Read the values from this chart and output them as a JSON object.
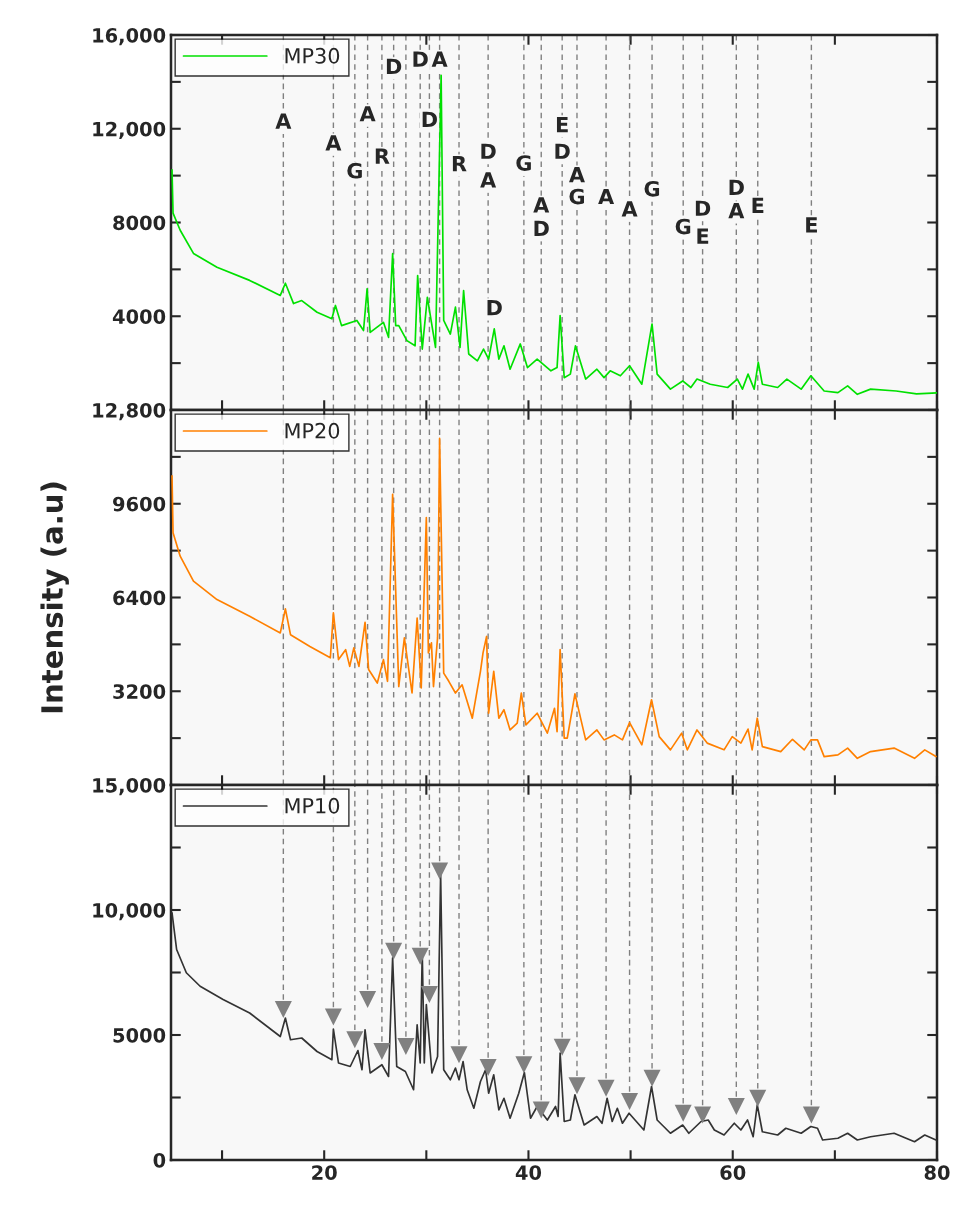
{
  "chart_data": [
    {
      "type": "line",
      "series": [
        {
          "name": "MP30",
          "color": "#00e000",
          "x": [
            5.1,
            5.2,
            5.9,
            7.2,
            9.5,
            12.7,
            15.7,
            16.2,
            17.0,
            17.8,
            19.3,
            20.75,
            21.1,
            21.7,
            23.2,
            23.85,
            24.2,
            24.5,
            25.8,
            26.3,
            26.7,
            27.0,
            27.3,
            28.1,
            28.9,
            29.15,
            29.6,
            30.1,
            30.9,
            31.45,
            31.7,
            32.35,
            32.85,
            33.3,
            33.65,
            34.15,
            35.0,
            35.6,
            36.1,
            36.65,
            37.1,
            37.6,
            38.2,
            39.2,
            39.9,
            40.85,
            42.2,
            42.8,
            43.1,
            43.5,
            44.1,
            44.6,
            45.6,
            46.7,
            47.4,
            48.0,
            49.0,
            49.9,
            51.1,
            52.1,
            52.6,
            53.9,
            55.1,
            55.9,
            56.5,
            57.8,
            59.5,
            60.45,
            60.95,
            61.5,
            62.1,
            62.5,
            62.9,
            64.4,
            65.3,
            66.7,
            67.65,
            68.95,
            70.3,
            71.25,
            72.2,
            73.5,
            76,
            78,
            80
          ],
          "values": [
            10250,
            8400,
            7670,
            6680,
            6090,
            5530,
            4890,
            5410,
            4540,
            4670,
            4170,
            3890,
            4460,
            3600,
            3820,
            3390,
            5170,
            3310,
            3740,
            3100,
            6670,
            3600,
            3600,
            2960,
            2740,
            5740,
            2600,
            4810,
            2670,
            14280,
            3820,
            3240,
            4390,
            2670,
            5100,
            2390,
            2100,
            2600,
            2170,
            3460,
            2170,
            2740,
            1740,
            2820,
            1810,
            2170,
            1670,
            1810,
            4030,
            1380,
            1530,
            2740,
            1320,
            1740,
            1380,
            1670,
            1460,
            1890,
            1100,
            3670,
            1530,
            890,
            1240,
            960,
            1320,
            1100,
            960,
            1320,
            890,
            1530,
            890,
            2030,
            1100,
            960,
            1320,
            890,
            1460,
            810,
            740,
            1030,
            670,
            890,
            810,
            690,
            730
          ]
        }
      ],
      "xlim": [
        5,
        80
      ],
      "xticks": [
        {
          "value": 10,
          "label": null
        },
        {
          "value": 20,
          "label": null
        },
        {
          "value": 30,
          "label": null
        },
        {
          "value": 40,
          "label": null
        },
        {
          "value": 50,
          "label": null
        },
        {
          "value": 60,
          "label": null
        },
        {
          "value": 70,
          "label": null
        },
        {
          "value": 80,
          "label": null
        }
      ],
      "ylim": [
        0,
        16000
      ],
      "yticks": [
        {
          "value": 0,
          "label": null
        },
        {
          "value": 2000,
          "label": null
        },
        4000,
        {
          "value": 6000,
          "label": null
        },
        8000,
        {
          "value": 10000,
          "label": null
        },
        {
          "value": 12000,
          "label": "12,000"
        },
        {
          "value": 14000,
          "label": null
        },
        {
          "value": 16000,
          "label": "16,000"
        }
      ],
      "tick_labels": "y",
      "legend": "top left",
      "line_style": "solid",
      "ref_lines": [
        {
          "axis": "x",
          "value": 16.0,
          "color": "#808080",
          "line_style": "dashed"
        },
        {
          "axis": "x",
          "value": 20.9,
          "color": "#808080",
          "line_style": "dashed"
        },
        {
          "axis": "x",
          "value": 23.0,
          "color": "#808080",
          "line_style": "dashed"
        },
        {
          "axis": "x",
          "value": 24.25,
          "color": "#808080",
          "line_style": "dashed"
        },
        {
          "axis": "x",
          "value": 25.65,
          "color": "#808080",
          "line_style": "dashed"
        },
        {
          "axis": "x",
          "value": 26.8,
          "color": "#808080",
          "line_style": "dashed"
        },
        {
          "axis": "x",
          "value": 28.0,
          "color": "#808080",
          "line_style": "dashed"
        },
        {
          "axis": "x",
          "value": 29.4,
          "color": "#808080",
          "line_style": "dashed"
        },
        {
          "axis": "x",
          "value": 30.3,
          "color": "#808080",
          "line_style": "dashed"
        },
        {
          "axis": "x",
          "value": 31.3,
          "color": "#808080",
          "line_style": "dashed"
        },
        {
          "axis": "x",
          "value": 33.2,
          "color": "#808080",
          "line_style": "dashed"
        },
        {
          "axis": "x",
          "value": 36.05,
          "color": "#808080",
          "line_style": "dashed"
        },
        {
          "axis": "x",
          "value": 39.55,
          "color": "#808080",
          "line_style": "dashed"
        },
        {
          "axis": "x",
          "value": 41.25,
          "color": "#808080",
          "line_style": "dashed"
        },
        {
          "axis": "x",
          "value": 43.3,
          "color": "#808080",
          "line_style": "dashed"
        },
        {
          "axis": "x",
          "value": 44.75,
          "color": "#808080",
          "line_style": "dashed"
        },
        {
          "axis": "x",
          "value": 47.6,
          "color": "#808080",
          "line_style": "dashed"
        },
        {
          "axis": "x",
          "value": 49.9,
          "color": "#808080",
          "line_style": "dashed"
        },
        {
          "axis": "x",
          "value": 52.1,
          "color": "#808080",
          "line_style": "dashed"
        },
        {
          "axis": "x",
          "value": 55.15,
          "color": "#808080",
          "line_style": "dashed"
        },
        {
          "axis": "x",
          "value": 57.05,
          "color": "#808080",
          "line_style": "dashed"
        },
        {
          "axis": "x",
          "value": 60.35,
          "color": "#808080",
          "line_style": "dashed"
        },
        {
          "axis": "x",
          "value": 62.45,
          "color": "#808080",
          "line_style": "dashed"
        },
        {
          "axis": "x",
          "value": 67.7,
          "color": "#808080",
          "line_style": "dashed"
        }
      ],
      "annotations": [
        {
          "text": "A",
          "x": 16.0,
          "y": 12250
        },
        {
          "text": "A",
          "x": 20.9,
          "y": 11320
        },
        {
          "text": "G",
          "x": 23.0,
          "y": 10130
        },
        {
          "text": "A",
          "x": 24.25,
          "y": 12560
        },
        {
          "text": "R",
          "x": 25.65,
          "y": 10750
        },
        {
          "text": "D",
          "x": 26.8,
          "y": 14580
        },
        {
          "text": "D",
          "x": 29.4,
          "y": 14890
        },
        {
          "text": "A",
          "x": 31.3,
          "y": 14890
        },
        {
          "text": "D",
          "x": 30.3,
          "y": 12320
        },
        {
          "text": "R",
          "x": 33.2,
          "y": 10430
        },
        {
          "text": "D",
          "x": 36.05,
          "y": 10960
        },
        {
          "text": "A",
          "x": 36.05,
          "y": 9740
        },
        {
          "text": "D",
          "x": 36.65,
          "y": 3460
        },
        {
          "text": "G",
          "x": 39.55,
          "y": 10460
        },
        {
          "text": "A",
          "x": 41.25,
          "y": 8670
        },
        {
          "text": "D",
          "x": 41.25,
          "y": 7670
        },
        {
          "text": "E",
          "x": 43.3,
          "y": 12100
        },
        {
          "text": "D",
          "x": 43.3,
          "y": 10960
        },
        {
          "text": "A",
          "x": 44.75,
          "y": 9960
        },
        {
          "text": "G",
          "x": 44.75,
          "y": 9030
        },
        {
          "text": "A",
          "x": 47.6,
          "y": 9030
        },
        {
          "text": "A",
          "x": 49.9,
          "y": 8500
        },
        {
          "text": "G",
          "x": 52.1,
          "y": 9360
        },
        {
          "text": "G",
          "x": 55.15,
          "y": 7750
        },
        {
          "text": "D",
          "x": 57.05,
          "y": 8530
        },
        {
          "text": "E",
          "x": 57.05,
          "y": 7340
        },
        {
          "text": "D",
          "x": 60.35,
          "y": 9420
        },
        {
          "text": "A",
          "x": 60.35,
          "y": 8430
        },
        {
          "text": "E",
          "x": 62.45,
          "y": 8650
        },
        {
          "text": "E",
          "x": 67.7,
          "y": 7820
        }
      ]
    },
    {
      "type": "line",
      "ylabel": "Intensity (a.u)",
      "series": [
        {
          "name": "MP20",
          "color": "#ff8000",
          "x": [
            5.1,
            5.2,
            5.9,
            7.2,
            9.5,
            12.7,
            15.7,
            16.2,
            16.7,
            18.6,
            20.6,
            20.9,
            21.4,
            22.1,
            22.5,
            22.9,
            23.4,
            24.0,
            24.35,
            25.2,
            25.8,
            26.2,
            26.7,
            27.3,
            27.85,
            28.6,
            29.1,
            29.5,
            30.0,
            30.2,
            30.5,
            30.7,
            31.1,
            31.3,
            31.7,
            32.2,
            32.85,
            33.5,
            34.5,
            35.3,
            35.55,
            35.9,
            36.1,
            36.6,
            37.1,
            37.6,
            38.2,
            38.9,
            39.3,
            39.75,
            40.85,
            41.85,
            42.55,
            42.8,
            43.1,
            43.5,
            43.8,
            44.55,
            45.6,
            46.7,
            47.4,
            48.4,
            49.2,
            49.9,
            51.1,
            52.05,
            52.8,
            53.9,
            55.0,
            55.55,
            56.5,
            57.5,
            59.15,
            59.95,
            60.8,
            61.5,
            61.9,
            62.4,
            62.9,
            64.7,
            65.85,
            67.0,
            67.65,
            68.3,
            68.95,
            70.3,
            71.25,
            72.2,
            73.5,
            75.8,
            77.8,
            78.8,
            79.9
          ],
          "values": [
            10550,
            8610,
            7810,
            6960,
            6330,
            5760,
            5190,
            6010,
            5130,
            4730,
            4340,
            5880,
            4280,
            4620,
            4050,
            4680,
            4050,
            5550,
            3940,
            3480,
            4280,
            3540,
            9920,
            3360,
            5020,
            3140,
            5700,
            3310,
            9130,
            4510,
            4850,
            3360,
            5020,
            11830,
            3820,
            3540,
            3140,
            3420,
            2280,
            3880,
            4510,
            5070,
            2450,
            3880,
            2280,
            2570,
            1880,
            2110,
            3140,
            2050,
            2450,
            1770,
            2620,
            1820,
            4620,
            1600,
            1600,
            3110,
            1540,
            1880,
            1540,
            1710,
            1540,
            2130,
            1370,
            2910,
            1650,
            1200,
            1770,
            1200,
            1880,
            1430,
            1200,
            1650,
            1430,
            1910,
            1200,
            2280,
            1310,
            1140,
            1560,
            1200,
            1540,
            1540,
            970,
            1030,
            1260,
            910,
            1140,
            1260,
            910,
            1200,
            970
          ]
        }
      ],
      "xlim": [
        5,
        80
      ],
      "xticks": [
        {
          "value": 10,
          "label": null
        },
        {
          "value": 20,
          "label": null
        },
        {
          "value": 30,
          "label": null
        },
        {
          "value": 40,
          "label": null
        },
        {
          "value": 50,
          "label": null
        },
        {
          "value": 60,
          "label": null
        },
        {
          "value": 70,
          "label": null
        },
        {
          "value": 80,
          "label": null
        }
      ],
      "ylim": [
        0,
        12800
      ],
      "yticks": [
        {
          "value": 0,
          "label": null
        },
        {
          "value": 1600,
          "label": null
        },
        3200,
        {
          "value": 4800,
          "label": null
        },
        6400,
        {
          "value": 8000,
          "label": null
        },
        9600,
        {
          "value": 11200,
          "label": null
        },
        {
          "value": 12800,
          "label": "12,800"
        }
      ],
      "tick_labels": "y",
      "legend": "top left",
      "line_style": "solid",
      "ref_lines": [
        {
          "axis": "x",
          "value": 16.0,
          "color": "#808080",
          "line_style": "dashed"
        },
        {
          "axis": "x",
          "value": 20.9,
          "color": "#808080",
          "line_style": "dashed"
        },
        {
          "axis": "x",
          "value": 23.0,
          "color": "#808080",
          "line_style": "dashed"
        },
        {
          "axis": "x",
          "value": 24.25,
          "color": "#808080",
          "line_style": "dashed"
        },
        {
          "axis": "x",
          "value": 25.65,
          "color": "#808080",
          "line_style": "dashed"
        },
        {
          "axis": "x",
          "value": 26.8,
          "color": "#808080",
          "line_style": "dashed"
        },
        {
          "axis": "x",
          "value": 28.0,
          "color": "#808080",
          "line_style": "dashed"
        },
        {
          "axis": "x",
          "value": 29.4,
          "color": "#808080",
          "line_style": "dashed"
        },
        {
          "axis": "x",
          "value": 30.3,
          "color": "#808080",
          "line_style": "dashed"
        },
        {
          "axis": "x",
          "value": 31.3,
          "color": "#808080",
          "line_style": "dashed"
        },
        {
          "axis": "x",
          "value": 33.2,
          "color": "#808080",
          "line_style": "dashed"
        },
        {
          "axis": "x",
          "value": 36.05,
          "color": "#808080",
          "line_style": "dashed"
        },
        {
          "axis": "x",
          "value": 39.55,
          "color": "#808080",
          "line_style": "dashed"
        },
        {
          "axis": "x",
          "value": 41.25,
          "color": "#808080",
          "line_style": "dashed"
        },
        {
          "axis": "x",
          "value": 43.3,
          "color": "#808080",
          "line_style": "dashed"
        },
        {
          "axis": "x",
          "value": 44.75,
          "color": "#808080",
          "line_style": "dashed"
        },
        {
          "axis": "x",
          "value": 47.6,
          "color": "#808080",
          "line_style": "dashed"
        },
        {
          "axis": "x",
          "value": 49.9,
          "color": "#808080",
          "line_style": "dashed"
        },
        {
          "axis": "x",
          "value": 52.1,
          "color": "#808080",
          "line_style": "dashed"
        },
        {
          "axis": "x",
          "value": 55.15,
          "color": "#808080",
          "line_style": "dashed"
        },
        {
          "axis": "x",
          "value": 57.05,
          "color": "#808080",
          "line_style": "dashed"
        },
        {
          "axis": "x",
          "value": 60.35,
          "color": "#808080",
          "line_style": "dashed"
        },
        {
          "axis": "x",
          "value": 62.45,
          "color": "#808080",
          "line_style": "dashed"
        },
        {
          "axis": "x",
          "value": 67.7,
          "color": "#808080",
          "line_style": "dashed"
        }
      ]
    },
    {
      "type": "line",
      "series": [
        {
          "name": "MP10",
          "color": "#333333",
          "x": [
            5.1,
            5.55,
            6.5,
            7.85,
            10.1,
            12.7,
            15.7,
            16.2,
            16.7,
            17.8,
            19.3,
            20.75,
            20.9,
            21.4,
            22.55,
            23.3,
            23.7,
            24.0,
            24.5,
            25.65,
            26.3,
            26.7,
            27.1,
            27.95,
            28.75,
            29.1,
            29.4,
            29.6,
            29.8,
            30.0,
            30.55,
            31.1,
            31.4,
            31.7,
            32.35,
            32.85,
            33.2,
            33.6,
            34.0,
            34.65,
            35.3,
            35.8,
            36.1,
            36.6,
            37.1,
            37.6,
            38.2,
            39.05,
            39.6,
            40.2,
            40.85,
            41.85,
            42.65,
            42.9,
            43.1,
            43.5,
            44.1,
            44.55,
            45.45,
            46.7,
            47.2,
            47.7,
            48.2,
            48.7,
            49.2,
            49.85,
            51.3,
            52.05,
            52.6,
            53.9,
            55.1,
            55.7,
            56.9,
            57.6,
            58.2,
            59.15,
            60.15,
            60.8,
            61.45,
            62.0,
            62.4,
            62.9,
            64.4,
            65.2,
            66.7,
            67.65,
            68.3,
            68.8,
            70.3,
            71.25,
            72.2,
            73.5,
            75.8,
            77.8,
            78.8,
            79.9
          ],
          "values": [
            9890,
            8420,
            7490,
            6950,
            6420,
            5880,
            4940,
            5680,
            4810,
            4880,
            4340,
            4010,
            5240,
            3880,
            3740,
            4380,
            3610,
            5210,
            3480,
            3810,
            3340,
            8090,
            3740,
            3540,
            2810,
            5410,
            3880,
            8290,
            3880,
            6220,
            3480,
            4140,
            11430,
            3610,
            3210,
            3680,
            3210,
            3940,
            2810,
            2070,
            3140,
            3610,
            2670,
            3410,
            2000,
            2470,
            1670,
            2670,
            3500,
            1670,
            2140,
            1600,
            2140,
            1740,
            4280,
            1540,
            1600,
            2610,
            1400,
            1740,
            1470,
            2470,
            1540,
            2070,
            1470,
            1870,
            1200,
            2940,
            1600,
            1070,
            1400,
            1070,
            1540,
            1600,
            1200,
            1000,
            1470,
            1200,
            1600,
            930,
            2210,
            1130,
            1000,
            1270,
            1070,
            1340,
            1270,
            800,
            870,
            1070,
            800,
            930,
            1070,
            730,
            1000,
            800
          ]
        },
        {
          "type": "scatter",
          "marker": "triangle",
          "color": "#808080",
          "x": [
            16.0,
            20.9,
            23.0,
            24.25,
            25.65,
            26.8,
            28.0,
            29.4,
            30.3,
            31.3,
            33.2,
            36.05,
            39.55,
            41.25,
            43.3,
            44.75,
            47.6,
            49.9,
            52.1,
            55.15,
            57.05,
            60.35,
            62.45,
            67.7
          ],
          "values": [
            6020,
            5720,
            4810,
            6420,
            4340,
            8350,
            4540,
            8150,
            6620,
            11560,
            4210,
            3700,
            3810,
            2000,
            4510,
            2970,
            2870,
            2340,
            3270,
            1870,
            1800,
            2140,
            2470,
            1800
          ]
        }
      ],
      "xlim": [
        5,
        80
      ],
      "xticks": [
        {
          "value": 10,
          "label": null
        },
        20,
        {
          "value": 30,
          "label": null
        },
        40,
        {
          "value": 50,
          "label": null
        },
        60,
        {
          "value": 70,
          "label": null
        },
        80
      ],
      "ylim": [
        0,
        15000
      ],
      "yticks": [
        0,
        {
          "value": 2500,
          "label": null
        },
        5000,
        {
          "value": 7500,
          "label": null
        },
        {
          "value": 10000,
          "label": "10,000"
        },
        {
          "value": 12500,
          "label": null
        },
        {
          "value": 15000,
          "label": "15,000"
        }
      ],
      "legend": "top left",
      "line_style": "solid",
      "ref_lines": [
        {
          "axis": "x",
          "value": 16.0,
          "color": "#808080",
          "line_style": "dashed"
        },
        {
          "axis": "x",
          "value": 20.9,
          "color": "#808080",
          "line_style": "dashed"
        },
        {
          "axis": "x",
          "value": 23.0,
          "color": "#808080",
          "line_style": "dashed"
        },
        {
          "axis": "x",
          "value": 24.25,
          "color": "#808080",
          "line_style": "dashed"
        },
        {
          "axis": "x",
          "value": 25.65,
          "color": "#808080",
          "line_style": "dashed"
        },
        {
          "axis": "x",
          "value": 26.8,
          "color": "#808080",
          "line_style": "dashed"
        },
        {
          "axis": "x",
          "value": 28.0,
          "color": "#808080",
          "line_style": "dashed"
        },
        {
          "axis": "x",
          "value": 29.4,
          "color": "#808080",
          "line_style": "dashed"
        },
        {
          "axis": "x",
          "value": 30.3,
          "color": "#808080",
          "line_style": "dashed"
        },
        {
          "axis": "x",
          "value": 31.3,
          "color": "#808080",
          "line_style": "dashed"
        },
        {
          "axis": "x",
          "value": 33.2,
          "color": "#808080",
          "line_style": "dashed"
        },
        {
          "axis": "x",
          "value": 36.05,
          "color": "#808080",
          "line_style": "dashed"
        },
        {
          "axis": "x",
          "value": 39.55,
          "color": "#808080",
          "line_style": "dashed"
        },
        {
          "axis": "x",
          "value": 41.25,
          "color": "#808080",
          "line_style": "dashed"
        },
        {
          "axis": "x",
          "value": 43.3,
          "color": "#808080",
          "line_style": "dashed"
        },
        {
          "axis": "x",
          "value": 44.75,
          "color": "#808080",
          "line_style": "dashed"
        },
        {
          "axis": "x",
          "value": 47.6,
          "color": "#808080",
          "line_style": "dashed"
        },
        {
          "axis": "x",
          "value": 49.9,
          "color": "#808080",
          "line_style": "dashed"
        },
        {
          "axis": "x",
          "value": 52.1,
          "color": "#808080",
          "line_style": "dashed"
        },
        {
          "axis": "x",
          "value": 55.15,
          "color": "#808080",
          "line_style": "dashed"
        },
        {
          "axis": "x",
          "value": 57.05,
          "color": "#808080",
          "line_style": "dashed"
        },
        {
          "axis": "x",
          "value": 60.35,
          "color": "#808080",
          "line_style": "dashed"
        },
        {
          "axis": "x",
          "value": 62.45,
          "color": "#808080",
          "line_style": "dashed"
        },
        {
          "axis": "x",
          "value": 67.7,
          "color": "#808080",
          "line_style": "dashed"
        }
      ]
    }
  ]
}
